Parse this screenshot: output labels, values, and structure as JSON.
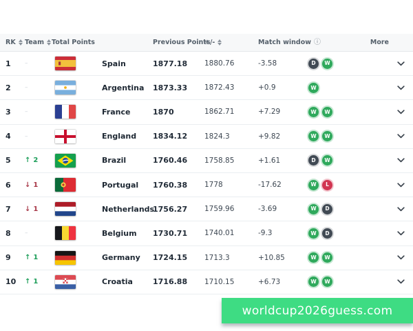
{
  "header": {
    "columns": [
      {
        "label": "RK",
        "sortable": true
      },
      {
        "label": "Team",
        "sortable": true
      },
      {
        "label": "Total Points",
        "sortable": false
      },
      {
        "label": "Previous Points",
        "sortable": false
      },
      {
        "label": "+/-",
        "sortable": true
      },
      {
        "label": "Match window",
        "info_icon": true
      },
      {
        "label": "More",
        "sortable": false
      }
    ]
  },
  "rows": [
    {
      "rank": "1",
      "move": {
        "dir": "same",
        "value": ""
      },
      "flag": "es",
      "team": "Spain",
      "total": "1877.18",
      "previous": "1880.76",
      "delta": "-3.58",
      "badges": [
        "D",
        "W"
      ]
    },
    {
      "rank": "2",
      "move": {
        "dir": "same",
        "value": ""
      },
      "flag": "ar",
      "team": "Argentina",
      "total": "1873.33",
      "previous": "1872.43",
      "delta": "+0.9",
      "badges": [
        "W"
      ]
    },
    {
      "rank": "3",
      "move": {
        "dir": "same",
        "value": ""
      },
      "flag": "fr",
      "team": "France",
      "total": "1870",
      "previous": "1862.71",
      "delta": "+7.29",
      "badges": [
        "W",
        "W"
      ]
    },
    {
      "rank": "4",
      "move": {
        "dir": "same",
        "value": ""
      },
      "flag": "en",
      "team": "England",
      "total": "1834.12",
      "previous": "1824.3",
      "delta": "+9.82",
      "badges": [
        "W",
        "W"
      ]
    },
    {
      "rank": "5",
      "move": {
        "dir": "up",
        "value": "2"
      },
      "flag": "br",
      "team": "Brazil",
      "total": "1760.46",
      "previous": "1758.85",
      "delta": "+1.61",
      "badges": [
        "D",
        "W"
      ]
    },
    {
      "rank": "6",
      "move": {
        "dir": "down",
        "value": "1"
      },
      "flag": "pt",
      "team": "Portugal",
      "total": "1760.38",
      "previous": "1778",
      "delta": "-17.62",
      "badges": [
        "W",
        "L"
      ]
    },
    {
      "rank": "7",
      "move": {
        "dir": "down",
        "value": "1"
      },
      "flag": "nl",
      "team": "Netherlands",
      "total": "1756.27",
      "previous": "1759.96",
      "delta": "-3.69",
      "badges": [
        "W",
        "D"
      ]
    },
    {
      "rank": "8",
      "move": {
        "dir": "same",
        "value": ""
      },
      "flag": "be",
      "team": "Belgium",
      "total": "1730.71",
      "previous": "1740.01",
      "delta": "-9.3",
      "badges": [
        "W",
        "D"
      ]
    },
    {
      "rank": "9",
      "move": {
        "dir": "up",
        "value": "1"
      },
      "flag": "de",
      "team": "Germany",
      "total": "1724.15",
      "previous": "1713.3",
      "delta": "+10.85",
      "badges": [
        "W",
        "W"
      ]
    },
    {
      "rank": "10",
      "move": {
        "dir": "up",
        "value": "1"
      },
      "flag": "hr",
      "team": "Croatia",
      "total": "1716.88",
      "previous": "1710.15",
      "delta": "+6.73",
      "badges": [
        "W",
        "W"
      ]
    }
  ],
  "banner": {
    "text": "worldcup2026guess.com",
    "bg_color": "#3edc83",
    "text_color": "#ffffff"
  },
  "colors": {
    "badge_win": "#2fa95c",
    "badge_draw": "#414a54",
    "badge_loss": "#d13551",
    "arrow_up": "#1e9e5a",
    "arrow_down": "#a83848",
    "header_bg": "#f7f8f9"
  },
  "icons": {
    "info": "ⓘ",
    "arrow_up": "↑",
    "arrow_down": "↓",
    "no_change": "–"
  }
}
